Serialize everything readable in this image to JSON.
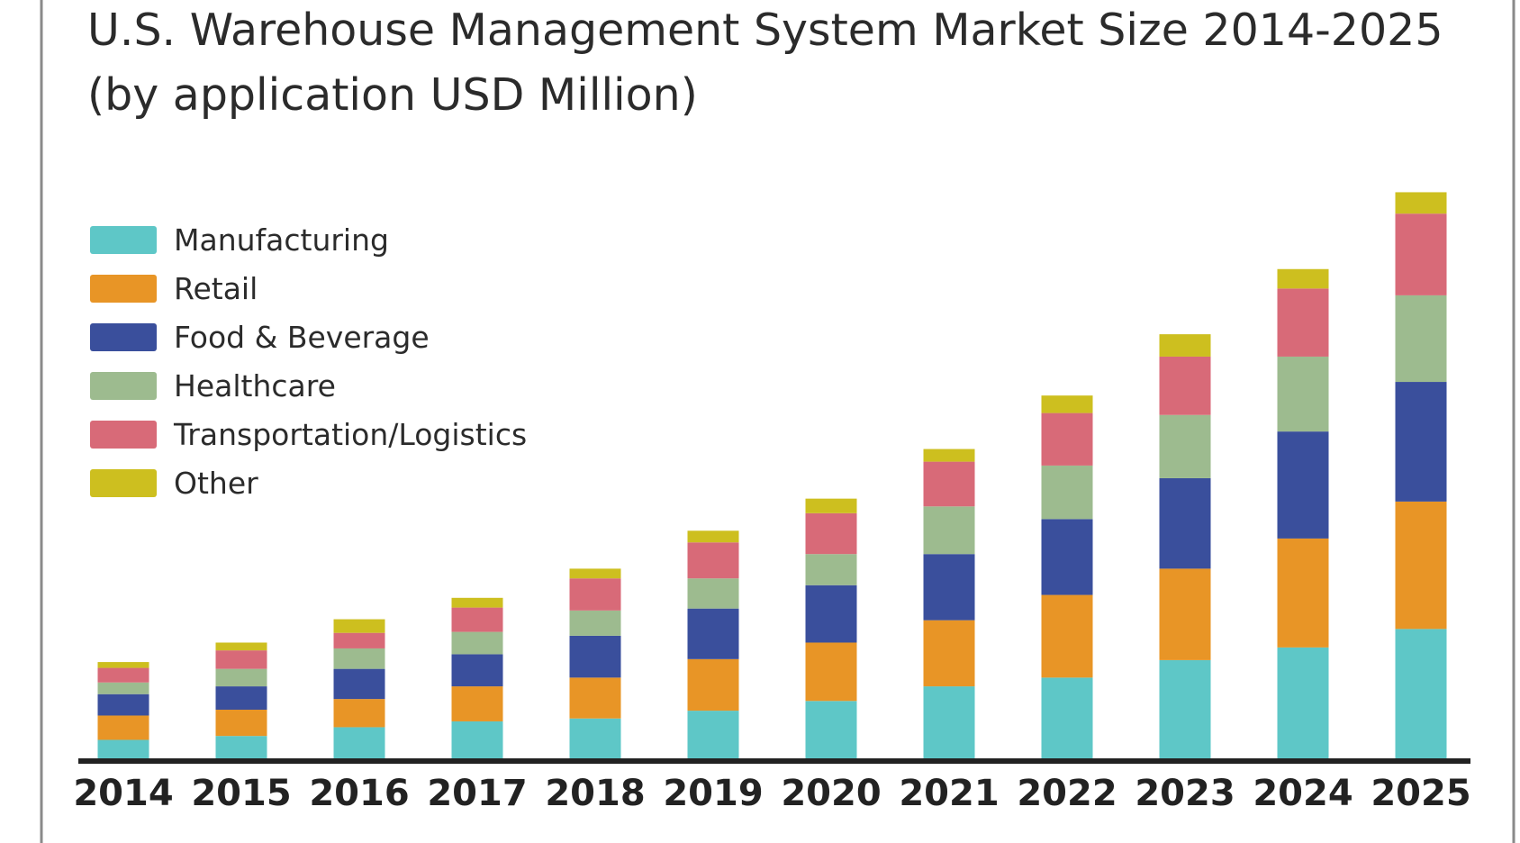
{
  "chart_data": {
    "type": "bar",
    "stacked": true,
    "title": "U.S. Warehouse Management System Market Size 2014-2025",
    "subtitle": "(by application USD Million)",
    "xlabel": "",
    "ylabel": "",
    "grid": false,
    "legend_position": "top-left",
    "value_note": "relative units estimated from bar heights (no y-axis shown)",
    "ylim": [
      0,
      600
    ],
    "categories": [
      "2014",
      "2015",
      "2016",
      "2017",
      "2018",
      "2019",
      "2020",
      "2021",
      "2022",
      "2023",
      "2024",
      "2025"
    ],
    "series": [
      {
        "name": "Manufacturing",
        "color": "#5ec7c7",
        "values": [
          19,
          23,
          32,
          38,
          41,
          49,
          59,
          74,
          83,
          101,
          114,
          133
        ]
      },
      {
        "name": "Retail",
        "color": "#e89526",
        "values": [
          25,
          27,
          29,
          36,
          42,
          53,
          60,
          68,
          85,
          94,
          112,
          131
        ]
      },
      {
        "name": "Food & Beverage",
        "color": "#3a4f9c",
        "values": [
          22,
          24,
          31,
          33,
          43,
          52,
          59,
          68,
          78,
          93,
          110,
          123
        ]
      },
      {
        "name": "Healthcare",
        "color": "#9dbb8f",
        "values": [
          12,
          18,
          21,
          23,
          26,
          31,
          32,
          49,
          55,
          65,
          77,
          89
        ]
      },
      {
        "name": "Transportation/Logistics",
        "color": "#d86a78",
        "values": [
          15,
          19,
          16,
          25,
          33,
          37,
          42,
          46,
          54,
          60,
          70,
          84
        ]
      },
      {
        "name": "Other",
        "color": "#cdbf1f",
        "values": [
          6,
          8,
          14,
          10,
          10,
          12,
          15,
          13,
          18,
          23,
          20,
          22
        ]
      }
    ]
  }
}
